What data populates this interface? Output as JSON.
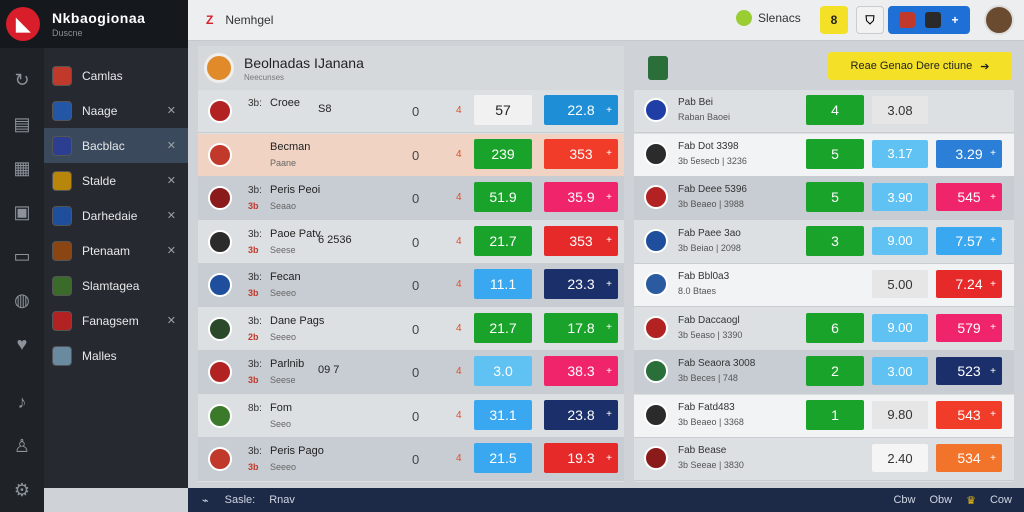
{
  "brand": {
    "title": "Nkbaogionaa",
    "sub": "Duscne"
  },
  "topbar": {
    "flag": "Z",
    "title": "Nemhgel",
    "status": "Slenacs",
    "btn_yellow": "8",
    "btn_white": "",
    "btn_blue_l": "",
    "btn_blue_r": "+"
  },
  "sidebar": {
    "items": [
      {
        "label": "Camlas",
        "color": "#c0392b",
        "active": false,
        "x": false
      },
      {
        "label": "Naage",
        "color": "#2456a6",
        "active": false,
        "x": true
      },
      {
        "label": "Bacblac",
        "color": "#2c3e8f",
        "active": true,
        "x": true
      },
      {
        "label": "Stalde",
        "color": "#b8860b",
        "active": false,
        "x": true
      },
      {
        "label": "Darhedaie",
        "color": "#1f4e9c",
        "active": false,
        "x": true
      },
      {
        "label": "Ptenaam",
        "color": "#8b4513",
        "active": false,
        "x": true
      },
      {
        "label": "Slamtagea",
        "color": "#3a6b2a",
        "active": false,
        "x": false
      },
      {
        "label": "Fanagsem",
        "color": "#b22222",
        "active": false,
        "x": true
      },
      {
        "label": "Malles",
        "color": "#6a8aa0",
        "active": false,
        "x": false
      }
    ]
  },
  "left_panel": {
    "title": "Beolnadas IJanana",
    "sub": "Neecunses",
    "rows": [
      {
        "t1": "3b:",
        "t2": "",
        "name": "Croee",
        "sub": "",
        "extra": "S8",
        "score": "0",
        "arrow": "4",
        "o1": "57",
        "o1bg": "#f1f1f1",
        "o1c": "#222",
        "o2": "22.8",
        "o2bg": "#1e8fd6",
        "style": ""
      },
      {
        "t1": "",
        "t2": "",
        "name": "Becman",
        "sub": "Paane",
        "extra": "",
        "score": "0",
        "arrow": "4",
        "o1": "239",
        "o1bg": "#1aa32a",
        "o1c": "#fff",
        "o2": "353",
        "o2bg": "#f23c2a",
        "style": "hl"
      },
      {
        "t1": "3b:",
        "t2": "3b",
        "name": "Peris Peoi",
        "sub": "Seaao",
        "extra": "",
        "score": "0",
        "arrow": "4",
        "o1": "51.9",
        "o1bg": "#1aa32a",
        "o1c": "#fff",
        "o2": "35.9",
        "o2bg": "#f0246a",
        "style": "alt"
      },
      {
        "t1": "3b:",
        "t2": "3b",
        "name": "Paoe Patv",
        "sub": "Seese",
        "extra": "6 2536",
        "score": "0",
        "arrow": "4",
        "o1": "21.7",
        "o1bg": "#1aa32a",
        "o1c": "#fff",
        "o2": "353",
        "o2bg": "#e62a2a",
        "style": ""
      },
      {
        "t1": "3b:",
        "t2": "3b",
        "name": "Fecan",
        "sub": "Seeeo",
        "extra": "",
        "score": "0",
        "arrow": "4",
        "o1": "11.1",
        "o1bg": "#3aa8f0",
        "o1c": "#fff",
        "o2": "23.3",
        "o2bg": "#1b2f6a",
        "style": "alt"
      },
      {
        "t1": "3b:",
        "t2": "2b",
        "name": "Dane Pags",
        "sub": "Seeeo",
        "extra": "",
        "score": "0",
        "arrow": "4",
        "o1": "21.7",
        "o1bg": "#1aa32a",
        "o1c": "#fff",
        "o2": "17.8",
        "o2bg": "#1aa32a",
        "style": ""
      },
      {
        "t1": "3b:",
        "t2": "3b",
        "name": "Parlnib",
        "sub": "Seese",
        "extra": "09 7",
        "score": "0",
        "arrow": "4",
        "o1": "3.0",
        "o1bg": "#5fc2f2",
        "o1c": "#fff",
        "o2": "38.3",
        "o2bg": "#f0246a",
        "style": "alt"
      },
      {
        "t1": "8b:",
        "t2": "",
        "name": "Fom",
        "sub": "Seeo",
        "extra": "",
        "score": "0",
        "arrow": "4",
        "o1": "31.1",
        "o1bg": "#3aa8f0",
        "o1c": "#fff",
        "o2": "23.8",
        "o2bg": "#1b2f6a",
        "style": ""
      },
      {
        "t1": "3b:",
        "t2": "3b",
        "name": "Peris Pago",
        "sub": "Seeeo",
        "extra": "",
        "score": "0",
        "arrow": "4",
        "o1": "21.5",
        "o1bg": "#3aa8f0",
        "o1c": "#fff",
        "o2": "19.3",
        "o2bg": "#e62a2a",
        "style": "alt"
      }
    ]
  },
  "right_panel": {
    "cta": "Reae Genao Dere ctiune",
    "rows": [
      {
        "t1": "Pab Bei",
        "t2": "Raban Baoei",
        "g": "4",
        "b1": "3.08",
        "b1bg": "#e6e6e6",
        "b1c": "#333",
        "b2": "",
        "b2bg": "",
        "style": ""
      },
      {
        "t1": "Fab Dot 3398",
        "t2": "3b 5esecb | 3236",
        "g": "5",
        "b1": "3.17",
        "b1bg": "#5fc2f2",
        "b1c": "#fff",
        "b2": "3.29",
        "b2bg": "#2b7fd6",
        "style": "white"
      },
      {
        "t1": "Fab Deee 5396",
        "t2": "3b Beaeo | 3988",
        "g": "5",
        "b1": "3.90",
        "b1bg": "#5fc2f2",
        "b1c": "#fff",
        "b2": "545",
        "b2bg": "#f0246a",
        "style": "alt"
      },
      {
        "t1": "Fab Paee 3ao",
        "t2": "3b Beiao | 2098",
        "g": "3",
        "b1": "9.00",
        "b1bg": "#5fc2f2",
        "b1c": "#fff",
        "b2": "7.57",
        "b2bg": "#3aa8f0",
        "style": ""
      },
      {
        "t1": "Fab Bbl0a3",
        "t2": "8.0 Btaes",
        "g": "",
        "b1": "5.00",
        "b1bg": "#e6e6e6",
        "b1c": "#333",
        "b2": "7.24",
        "b2bg": "#e62a2a",
        "style": "white"
      },
      {
        "t1": "Fab Daccaogl",
        "t2": "3b 5easo | 3390",
        "g": "6",
        "b1": "9.00",
        "b1bg": "#5fc2f2",
        "b1c": "#fff",
        "b2": "579",
        "b2bg": "#f0246a",
        "style": ""
      },
      {
        "t1": "Fab Seaora 3008",
        "t2": "3b Beces | 748",
        "g": "2",
        "b1": "3.00",
        "b1bg": "#5fc2f2",
        "b1c": "#fff",
        "b2": "523",
        "b2bg": "#1b2f6a",
        "style": "alt"
      },
      {
        "t1": "Fab Fatd483",
        "t2": "3b Beaeo | 3368",
        "g": "1",
        "b1": "9.80",
        "b1bg": "#e6e6e6",
        "b1c": "#333",
        "b2": "543",
        "b2bg": "#f23c2a",
        "style": "white"
      },
      {
        "t1": "Fab Bease",
        "t2": "3b Seeae | 3830",
        "g": "",
        "b1": "2.40",
        "b1bg": "#f5f5f5",
        "b1c": "#333",
        "b2": "534",
        "b2bg": "#f2732a",
        "style": ""
      }
    ]
  },
  "footer": {
    "l1": "Sasle:",
    "l2": "Rnav",
    "r1": "Cbw",
    "r2": "Obw",
    "r3": "Cow"
  }
}
